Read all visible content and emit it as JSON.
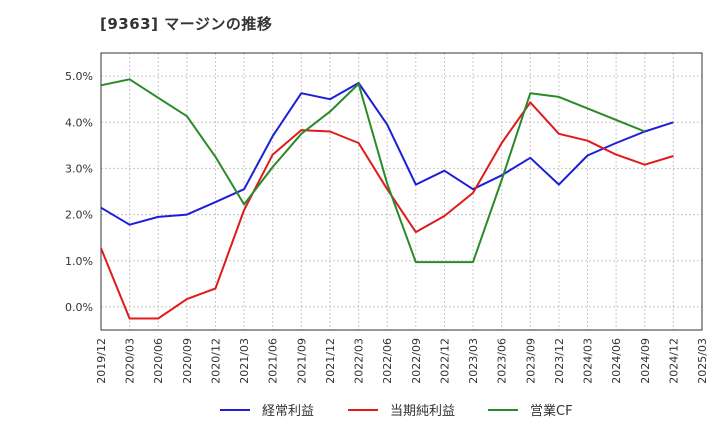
{
  "chart_data": {
    "type": "line",
    "title": "[9363]  マージンの推移",
    "categories": [
      "2019/12",
      "2020/03",
      "2020/06",
      "2020/09",
      "2020/12",
      "2021/03",
      "2021/06",
      "2021/09",
      "2021/12",
      "2022/03",
      "2022/06",
      "2022/09",
      "2022/12",
      "2023/03",
      "2023/06",
      "2023/09",
      "2023/12",
      "2024/03",
      "2024/06",
      "2024/09",
      "2024/12",
      "2025/03"
    ],
    "y_ticks": [
      "0.0%",
      "1.0%",
      "2.0%",
      "3.0%",
      "4.0%",
      "5.0%"
    ],
    "ylim": [
      -0.5,
      5.5
    ],
    "grid": "both",
    "legend_position": "bottom",
    "series": [
      {
        "name": "経常利益",
        "color": "#1f1fd6",
        "values": [
          2.15,
          1.78,
          1.95,
          2.0,
          2.27,
          2.55,
          3.7,
          4.63,
          4.5,
          4.85,
          3.95,
          2.65,
          2.95,
          2.55,
          2.85,
          3.23,
          2.65,
          3.28,
          3.55,
          3.8,
          4.0,
          null
        ]
      },
      {
        "name": "当期純利益",
        "color": "#e01b1b",
        "values": [
          1.27,
          -0.25,
          -0.25,
          0.17,
          0.4,
          2.1,
          3.3,
          3.83,
          3.8,
          3.55,
          2.55,
          1.62,
          1.97,
          2.47,
          3.55,
          4.43,
          3.75,
          3.6,
          3.3,
          3.08,
          3.27,
          null
        ]
      },
      {
        "name": "営業CF",
        "color": "#2a8a2a",
        "values": [
          4.8,
          4.93,
          4.53,
          4.13,
          3.25,
          2.22,
          3.03,
          3.75,
          4.23,
          4.83,
          2.67,
          0.97,
          0.97,
          0.97,
          2.75,
          4.63,
          4.55,
          4.3,
          4.05,
          3.8,
          null,
          null
        ]
      }
    ]
  }
}
